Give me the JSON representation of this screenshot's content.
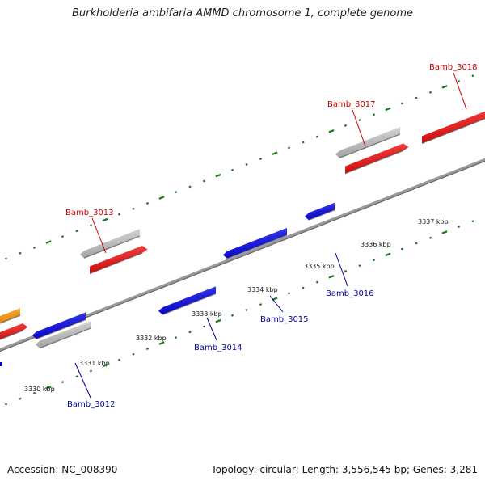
{
  "title": "Burkholderia ambifaria AMMD chromosome 1, complete genome",
  "footer": {
    "accession": "Accession: NC_008390",
    "summary": "Topology: circular; Length: 3,556,545 bp; Genes: 3,281"
  },
  "scale": {
    "ticks": [
      {
        "label": "3330 kbp"
      },
      {
        "label": "3331 kbp"
      },
      {
        "label": "3332 kbp"
      },
      {
        "label": "3333 kbp"
      },
      {
        "label": "3334 kbp"
      },
      {
        "label": "3335 kbp"
      },
      {
        "label": "3336 kbp"
      },
      {
        "label": "3337 kbp"
      }
    ]
  },
  "genes": [
    {
      "label": "Bamb_3012",
      "strand": "reverse"
    },
    {
      "label": "Bamb_3013",
      "strand": "forward"
    },
    {
      "label": "Bamb_3014",
      "strand": "reverse"
    },
    {
      "label": "Bamb_3015",
      "strand": "reverse"
    },
    {
      "label": "Bamb_3016",
      "strand": "reverse"
    },
    {
      "label": "Bamb_3017",
      "strand": "forward"
    },
    {
      "label": "Bamb_3018",
      "strand": "forward"
    }
  ],
  "colors": {
    "forward_cds": "#ff0000",
    "reverse_cds": "#0000ff",
    "gene": "#c8c8c8",
    "other": "#ff9900",
    "backbone": "#888888",
    "tick": "#1a7a1a",
    "forward_label": "#cc0000",
    "reverse_label": "#000099"
  }
}
